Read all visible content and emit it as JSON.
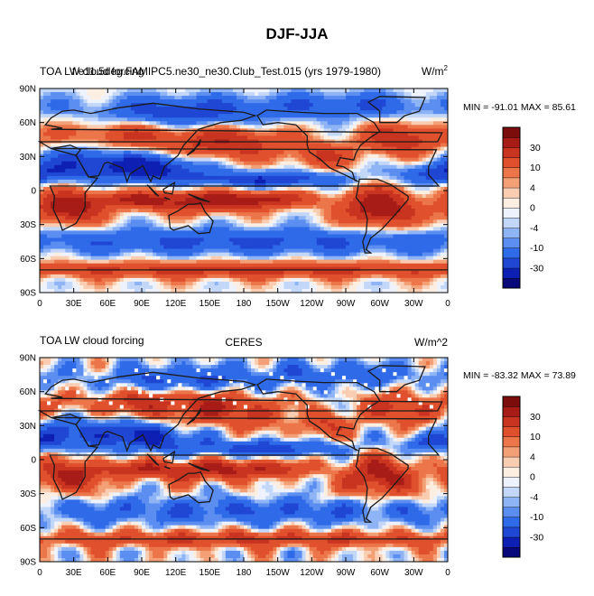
{
  "figure": {
    "title": "DJF-JJA",
    "units_html": "W/m",
    "units_sup": "2",
    "colors": [
      "#08087a",
      "#0e20b4",
      "#1f47d4",
      "#2f6ae8",
      "#5b8ef0",
      "#8fb4f5",
      "#c3d7f9",
      "#eef2fd",
      "#fdeee2",
      "#f9cdb1",
      "#f4a077",
      "#ec764a",
      "#e0502d",
      "#c93420",
      "#a81c18",
      "#7c0d0d"
    ],
    "land_color": "#1a1a1a"
  },
  "panels": [
    {
      "id": "model",
      "title_left_a": "TOA LW cloud forcing",
      "title_left_b": "f.e11.5deg.FAMIPC5.ne30_ne30.Club_Test.015 (yrs 1979-1980)",
      "title_center": "",
      "title_right": "W/m",
      "title_right_sup": "2",
      "min_max": "MIN = -91.01 MAX =  85.61"
    },
    {
      "id": "obs",
      "title_left_a": "TOA LW cloud forcing",
      "title_left_b": "",
      "title_center": "CERES",
      "title_right": "W/m^2",
      "title_right_sup": "",
      "min_max": "MIN = -83.32 MAX =  73.89"
    }
  ],
  "lat_labels": [
    "90N",
    "60N",
    "30N",
    "0",
    "30S",
    "60S",
    "90S"
  ],
  "lon_labels": [
    "0",
    "30E",
    "60E",
    "90E",
    "120E",
    "150E",
    "180",
    "150W",
    "120W",
    "90W",
    "60W",
    "30W",
    "0"
  ],
  "colorbar_labels": [
    "30",
    "10",
    "4",
    "0",
    "-4",
    "-10",
    "-30"
  ]
}
